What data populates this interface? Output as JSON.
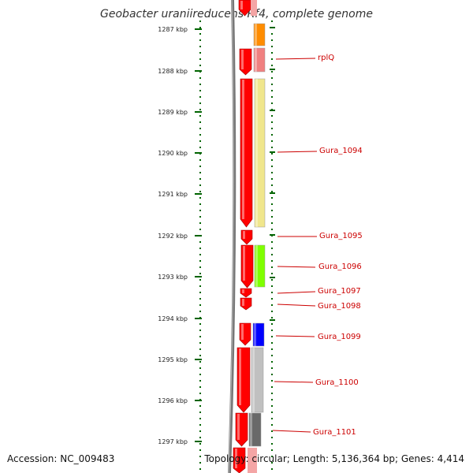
{
  "title": "Geobacter uraniireducens Rf4, complete genome",
  "accession": "Accession: NC_009483",
  "summary": "Topology: circular; Length: 5,136,364 bp; Genes: 4,414",
  "ruler": {
    "labels": [
      "1287 kbp",
      "1288 kbp",
      "1289 kbp",
      "1290 kbp",
      "1291 kbp",
      "1292 kbp",
      "1293 kbp",
      "1294 kbp",
      "1295 kbp",
      "1296 kbp",
      "1297 kbp"
    ]
  },
  "genes": [
    {
      "label": "",
      "color": "#ff8c00"
    },
    {
      "label": "rplQ",
      "color": "#f08080"
    },
    {
      "label": "Gura_1094",
      "color": "#f0e68c"
    },
    {
      "label": "Gura_1095",
      "color": ""
    },
    {
      "label": "Gura_1096",
      "color": "#7fff00"
    },
    {
      "label": "Gura_1097",
      "color": ""
    },
    {
      "label": "Gura_1098",
      "color": ""
    },
    {
      "label": "Gura_1099",
      "color": "#0000ff"
    },
    {
      "label": "Gura_1100",
      "color": "#c0c0c0"
    },
    {
      "label": "Gura_1101",
      "color": "#696969"
    }
  ],
  "colors": {
    "arrow": "#ff0000",
    "label": "#cc0000",
    "tick": "#006400"
  }
}
